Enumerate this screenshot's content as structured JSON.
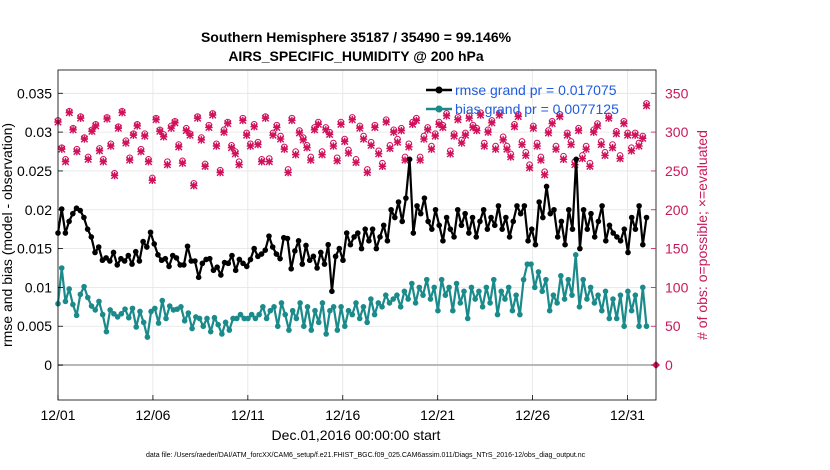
{
  "chart_data": {
    "type": "line",
    "title": "Southern Hemisphere 35187 / 35490 = 99.146%",
    "subtitle": "AIRS_SPECIFIC_HUMIDITY @ 200 hPa",
    "xlabel": "Dec.01,2016 00:00:00 start",
    "ylabel": "rmse and bias (model - observation)",
    "ylabel_right": "# of obs: o=possible; ×=evaluated",
    "footer": "data file: /Users/raeder/DAI/ATM_forcXX/CAM6_setup/f.e21.FHIST_BGC.f09_025.CAM6assim.011/Diags_NTrS_2016-12/obs_diag_output.nc",
    "xlim": [
      0,
      31.5
    ],
    "ylim": [
      -0.0045,
      0.038
    ],
    "ylim_right": [
      -45,
      380
    ],
    "xticks": [
      0,
      5,
      10,
      15,
      20,
      25,
      30
    ],
    "xtick_labels": [
      "12/01",
      "12/06",
      "12/11",
      "12/16",
      "12/21",
      "12/26",
      "12/31"
    ],
    "yticks": [
      0,
      0.005,
      0.01,
      0.015,
      0.02,
      0.025,
      0.03,
      0.035
    ],
    "ytick_labels": [
      "0",
      "0.005",
      "0.01",
      "0.015",
      "0.02",
      "0.025",
      "0.03",
      "0.035"
    ],
    "yticks_right": [
      0,
      50,
      100,
      150,
      200,
      250,
      300,
      350
    ],
    "ytick_right_labels": [
      "0",
      "50",
      "100",
      "150",
      "200",
      "250",
      "300",
      "350"
    ],
    "grid": true,
    "series": [
      {
        "name": "rmse grand pr = 0.017075",
        "color": "#000000",
        "values": [
          0.017,
          0.0201,
          0.017,
          0.0185,
          0.0195,
          0.0202,
          0.0199,
          0.019,
          0.0175,
          0.0165,
          0.0145,
          0.0152,
          0.0135,
          0.0138,
          0.0134,
          0.0145,
          0.0129,
          0.0137,
          0.0134,
          0.0141,
          0.013,
          0.0146,
          0.0134,
          0.0159,
          0.0152,
          0.0171,
          0.0156,
          0.0142,
          0.0135,
          0.0137,
          0.0127,
          0.0141,
          0.0138,
          0.0129,
          0.0129,
          0.0153,
          0.0134,
          0.0134,
          0.0113,
          0.0131,
          0.0136,
          0.0137,
          0.0122,
          0.0126,
          0.0116,
          0.0132,
          0.0131,
          0.0141,
          0.0122,
          0.0136,
          0.0131,
          0.0127,
          0.0136,
          0.015,
          0.014,
          0.0143,
          0.0148,
          0.0166,
          0.0152,
          0.0143,
          0.0137,
          0.0164,
          0.0163,
          0.0124,
          0.0147,
          0.016,
          0.013,
          0.0154,
          0.0135,
          0.014,
          0.0125,
          0.0145,
          0.013,
          0.0155,
          0.0095,
          0.014,
          0.015,
          0.0135,
          0.017,
          0.0155,
          0.0165,
          0.017,
          0.015,
          0.0175,
          0.016,
          0.0175,
          0.015,
          0.0165,
          0.018,
          0.016,
          0.02,
          0.019,
          0.021,
          0.0185,
          0.0215,
          0.0265,
          0.017,
          0.0205,
          0.0195,
          0.0215,
          0.0185,
          0.0175,
          0.02,
          0.018,
          0.016,
          0.019,
          0.0175,
          0.0165,
          0.02,
          0.018,
          0.0195,
          0.017,
          0.019,
          0.0165,
          0.0185,
          0.02,
          0.0175,
          0.019,
          0.018,
          0.0205,
          0.0175,
          0.019,
          0.0165,
          0.0185,
          0.0205,
          0.0195,
          0.0205,
          0.016,
          0.0175,
          0.0155,
          0.021,
          0.019,
          0.023,
          0.0195,
          0.02,
          0.0165,
          0.0185,
          0.0155,
          0.02,
          0.0175,
          0.0265,
          0.015,
          0.02,
          0.0175,
          0.0195,
          0.0165,
          0.0185,
          0.0205,
          0.016,
          0.018,
          0.017,
          0.0165,
          0.016,
          0.0175,
          0.0145,
          0.019,
          0.0175,
          0.0205,
          0.0155,
          0.019
        ],
        "markers": "filled-circle"
      },
      {
        "name": "bias grand pr = 0.0077125",
        "color": "#1a8a8a",
        "values": [
          0.0079,
          0.0125,
          0.0082,
          0.0098,
          0.0078,
          0.0064,
          0.0091,
          0.0101,
          0.0087,
          0.0076,
          0.0071,
          0.0082,
          0.0065,
          0.0043,
          0.0071,
          0.0066,
          0.0062,
          0.0066,
          0.0072,
          0.0061,
          0.0073,
          0.0049,
          0.0069,
          0.0055,
          0.0036,
          0.0069,
          0.0073,
          0.0054,
          0.0083,
          0.006,
          0.0076,
          0.0071,
          0.0072,
          0.0075,
          0.0057,
          0.0067,
          0.0047,
          0.0062,
          0.006,
          0.005,
          0.006,
          0.0043,
          0.0061,
          0.0052,
          0.004,
          0.0055,
          0.0045,
          0.006,
          0.006,
          0.0065,
          0.006,
          0.006,
          0.0065,
          0.006,
          0.0065,
          0.0075,
          0.006,
          0.007,
          0.0075,
          0.005,
          0.008,
          0.0065,
          0.0045,
          0.007,
          0.006,
          0.008,
          0.005,
          0.0075,
          0.0045,
          0.007,
          0.0055,
          0.008,
          0.004,
          0.007,
          0.0075,
          0.0045,
          0.0075,
          0.005,
          0.007,
          0.0065,
          0.008,
          0.006,
          0.0075,
          0.0055,
          0.0085,
          0.0065,
          0.008,
          0.0075,
          0.009,
          0.008,
          0.0085,
          0.009,
          0.0075,
          0.0095,
          0.0085,
          0.0105,
          0.008,
          0.01,
          0.009,
          0.011,
          0.0085,
          0.01,
          0.007,
          0.011,
          0.009,
          0.01,
          0.007,
          0.0105,
          0.008,
          0.0095,
          0.006,
          0.01,
          0.0085,
          0.0095,
          0.0075,
          0.01,
          0.008,
          0.011,
          0.0065,
          0.0095,
          0.0085,
          0.01,
          0.007,
          0.009,
          0.0065,
          0.011,
          0.013,
          0.013,
          0.01,
          0.012,
          0.0095,
          0.011,
          0.007,
          0.009,
          0.008,
          0.0115,
          0.0085,
          0.011,
          0.009,
          0.0142,
          0.0075,
          0.011,
          0.0085,
          0.01,
          0.008,
          0.009,
          0.007,
          0.0095,
          0.006,
          0.0085,
          0.006,
          0.009,
          0.005,
          0.0095,
          0.007,
          0.009,
          0.005,
          0.01,
          0.005
        ],
        "markers": "filled-circle"
      }
    ],
    "obs_evaluated": {
      "color": "#d0105a",
      "values": [
        313,
        278,
        262,
        325,
        303,
        275,
        318,
        291,
        265,
        301,
        308,
        276,
        262,
        317,
        282,
        244,
        305,
        325,
        286,
        264,
        296,
        308,
        275,
        295,
        262,
        238,
        316,
        301,
        294,
        258,
        305,
        312,
        281,
        260,
        302,
        296,
        231,
        318,
        290,
        256,
        306,
        322,
        282,
        248,
        300,
        311,
        280,
        272,
        258,
        315,
        296,
        282,
        307,
        284,
        262,
        318,
        262,
        296,
        306,
        291,
        278,
        248,
        315,
        271,
        299,
        290,
        280,
        264,
        303,
        310,
        271,
        303,
        297,
        282,
        263,
        310,
        288,
        273,
        316,
        261,
        305,
        291,
        248,
        283,
        306,
        272,
        256,
        313,
        279,
        300,
        287,
        302,
        264,
        281,
        310,
        315,
        264,
        291,
        303,
        278,
        295,
        310,
        306,
        321,
        272,
        295,
        316,
        286,
        296,
        318,
        306,
        302,
        322,
        282,
        300,
        312,
        278,
        322,
        290,
        278,
        268,
        307,
        320,
        284,
        270,
        254,
        305,
        282,
        264,
        245,
        299,
        311,
        278,
        320,
        265,
        296,
        284,
        258,
        302,
        266,
        278,
        256,
        300,
        308,
        284,
        270,
        318,
        280,
        298,
        266,
        311,
        296,
        276,
        296,
        282,
        292,
        334
      ]
    },
    "obs_possible": {
      "color": "#d0105a",
      "values": [
        315,
        280,
        265,
        327,
        305,
        278,
        320,
        293,
        268,
        303,
        310,
        279,
        265,
        319,
        285,
        247,
        307,
        327,
        289,
        267,
        298,
        310,
        278,
        298,
        265,
        241,
        318,
        303,
        297,
        262,
        308,
        314,
        284,
        263,
        305,
        298,
        234,
        320,
        293,
        259,
        309,
        324,
        285,
        251,
        303,
        313,
        283,
        275,
        262,
        318,
        299,
        285,
        310,
        287,
        265,
        320,
        266,
        299,
        309,
        295,
        281,
        252,
        318,
        275,
        302,
        293,
        283,
        268,
        306,
        313,
        275,
        306,
        300,
        286,
        267,
        313,
        291,
        277,
        319,
        265,
        308,
        295,
        252,
        287,
        309,
        276,
        260,
        316,
        283,
        303,
        291,
        305,
        268,
        285,
        313,
        318,
        268,
        295,
        306,
        282,
        298,
        313,
        309,
        324,
        276,
        298,
        319,
        290,
        299,
        321,
        309,
        305,
        325,
        286,
        303,
        315,
        282,
        325,
        294,
        282,
        272,
        310,
        323,
        288,
        274,
        258,
        308,
        286,
        268,
        249,
        302,
        314,
        282,
        323,
        269,
        299,
        288,
        262,
        305,
        270,
        282,
        260,
        303,
        311,
        288,
        274,
        321,
        284,
        301,
        270,
        314,
        299,
        280,
        299,
        286,
        295,
        337
      ]
    }
  },
  "legend": {
    "rmse_label": "rmse grand pr = 0.017075",
    "bias_label": "bias grand pr = 0.0077125"
  }
}
